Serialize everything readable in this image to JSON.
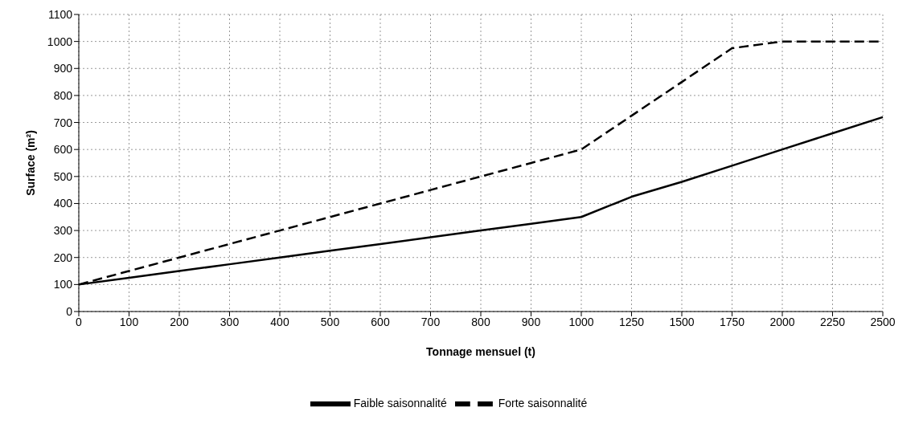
{
  "chart_data": {
    "type": "line",
    "xlabel": "Tonnage mensuel (t)",
    "ylabel": "Surface (m²)",
    "categories": [
      "0",
      "100",
      "200",
      "300",
      "400",
      "500",
      "600",
      "700",
      "800",
      "900",
      "1000",
      "1250",
      "1500",
      "1750",
      "2000",
      "2250",
      "2500"
    ],
    "series": [
      {
        "name": "Forte saisonnalité",
        "color": "#000000",
        "line_style": "dashed",
        "values": [
          100,
          150,
          200,
          250,
          300,
          350,
          400,
          450,
          500,
          550,
          600,
          725,
          850,
          975,
          1000,
          1000,
          1000
        ]
      },
      {
        "name": "Faible saisonnalité",
        "color": "#000000",
        "line_style": "solid",
        "values": [
          100,
          125,
          150,
          175,
          200,
          225,
          250,
          275,
          300,
          325,
          350,
          425,
          480,
          540,
          600,
          660,
          720
        ]
      }
    ],
    "ylim": [
      0,
      1100
    ],
    "yticks": [
      0,
      100,
      200,
      300,
      400,
      500,
      600,
      700,
      800,
      900,
      1000,
      1100
    ],
    "grid": true,
    "legend": "bottom",
    "marker": "none"
  }
}
